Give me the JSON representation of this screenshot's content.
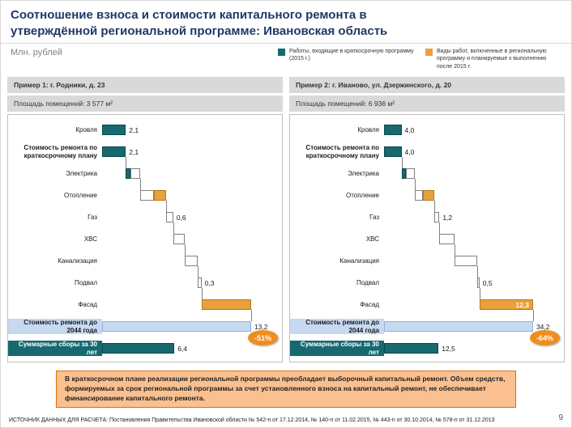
{
  "slide": {
    "title": "Соотношение взноса и стоимости капитального ремонта в утверждённой региональной программе: Ивановская область",
    "units_label": "Млн. рублей",
    "callout": "В краткосрочном плане реализации региональной программы преобладает выборочный капитальный ремонт. Объем средств, формируемых за срок региональной программы за счет установленного взноса на капитальный ремонт, не обеспечивает финансирование капитального ремонта.",
    "footer": "ИСТОЧНИК ДАННЫХ ДЛЯ РАСЧЕТА: Постановления Правительства Ивановской области № 542-п от 17.12.2014, № 140-п от 11.02.2015, № 443-п от 30.10.2014, № 578-п от 31.12.2013",
    "page_number": "9"
  },
  "legend": {
    "items": [
      {
        "label": "Работы, входящие в краткосрочную программу (2015 г.)",
        "color": "#176970"
      },
      {
        "label": "Виды работ, включенные в региональную программу и планируемые к выполнению после 2015 г.",
        "color": "#E8A13C"
      }
    ]
  },
  "colors": {
    "navy": "#203864",
    "teal": "#176970",
    "teal_dark": "#0E474C",
    "orange": "#E8A13C",
    "orange_dark": "#B97718",
    "light_blue": "#C6D9F1",
    "light_blue_border": "#8EB4E3",
    "badge_orange": "#EF8D1E",
    "callout_bg": "#FAC090",
    "callout_border": "#E36C0A",
    "header_gray": "#D9D9D9"
  },
  "chart_data": [
    {
      "type": "bar",
      "variant": "waterfall",
      "orientation": "horizontal",
      "title": "Пример 1: г. Родники, д. 23",
      "subtitle": "Площадь помещений: 3 577 м²",
      "unit": "Млн. рублей",
      "xmax": 13.2,
      "badge": "-51%",
      "rows": [
        {
          "label": "Кровля",
          "segments": [
            {
              "start": 0,
              "value": 2.1,
              "color": "teal"
            }
          ],
          "value_label": "2,1"
        },
        {
          "label": "Стоимость ремонта по краткосрочному плану",
          "bold": true,
          "segments": [
            {
              "start": 0,
              "value": 2.1,
              "color": "teal"
            }
          ],
          "value_label": "2,1"
        },
        {
          "label": "Электрика",
          "segments": [
            {
              "start": 2.1,
              "value": 0.4,
              "color": "teal"
            },
            {
              "start": 2.5,
              "value": 0.9,
              "color": "white"
            }
          ],
          "connector": 2.1
        },
        {
          "label": "Отопление",
          "segments": [
            {
              "start": 3.4,
              "value": 1.2,
              "color": "white"
            },
            {
              "start": 4.6,
              "value": 1.1,
              "color": "orange"
            }
          ],
          "connector": 3.4
        },
        {
          "label": "Газ",
          "segments": [
            {
              "start": 5.7,
              "value": 0.6,
              "color": "white"
            }
          ],
          "value_label": "0,6",
          "connector": 5.7
        },
        {
          "label": "ХВС",
          "segments": [
            {
              "start": 6.3,
              "value": 1.0,
              "color": "white"
            }
          ],
          "connector": 6.3
        },
        {
          "label": "Канализация",
          "segments": [
            {
              "start": 7.3,
              "value": 1.2,
              "color": "white"
            }
          ],
          "connector": 7.3
        },
        {
          "label": "Подвал",
          "segments": [
            {
              "start": 8.5,
              "value": 0.3,
              "color": "white"
            }
          ],
          "value_label": "0,3",
          "connector": 8.5
        },
        {
          "label": "Фасад",
          "segments": [
            {
              "start": 8.8,
              "value": 4.4,
              "color": "orange"
            }
          ],
          "connector": 8.8
        },
        {
          "label": "Стоимость ремонта до 2044 года",
          "bold": true,
          "label_style": "blue",
          "segments": [
            {
              "start": 0,
              "value": 13.2,
              "color": "lightblue"
            }
          ],
          "value_label": "13,2",
          "connector": 13.2
        },
        {
          "label": "Суммарные сборы за 30 лет",
          "bold": true,
          "label_style": "teal",
          "segments": [
            {
              "start": 0,
              "value": 6.4,
              "color": "teal"
            }
          ],
          "value_label": "6,4"
        }
      ]
    },
    {
      "type": "bar",
      "variant": "waterfall",
      "orientation": "horizontal",
      "title": "Пример 2: г. Иваново, ул. Дзержинского, д. 20",
      "subtitle": "Площадь помещений: 6 936 м²",
      "unit": "Млн. рублей",
      "xmax": 34.2,
      "badge": "-64%",
      "rows": [
        {
          "label": "Кровля",
          "segments": [
            {
              "start": 0,
              "value": 4.0,
              "color": "teal"
            }
          ],
          "value_label": "4,0"
        },
        {
          "label": "Стоимость ремонта по краткосрочному плану",
          "bold": true,
          "segments": [
            {
              "start": 0,
              "value": 4.0,
              "color": "teal"
            }
          ],
          "value_label": "4,0"
        },
        {
          "label": "Электрика",
          "segments": [
            {
              "start": 4.0,
              "value": 1.0,
              "color": "teal"
            },
            {
              "start": 5.0,
              "value": 2.0,
              "color": "white"
            }
          ],
          "connector": 4.0
        },
        {
          "label": "Отопление",
          "segments": [
            {
              "start": 7.0,
              "value": 2.0,
              "color": "white"
            },
            {
              "start": 9.0,
              "value": 2.5,
              "color": "orange"
            }
          ],
          "connector": 7.0
        },
        {
          "label": "Газ",
          "segments": [
            {
              "start": 11.5,
              "value": 1.2,
              "color": "white"
            }
          ],
          "value_label": "1,2",
          "connector": 11.5
        },
        {
          "label": "ХВС",
          "segments": [
            {
              "start": 12.7,
              "value": 3.5,
              "color": "white"
            }
          ],
          "connector": 12.7
        },
        {
          "label": "Канализация",
          "segments": [
            {
              "start": 16.2,
              "value": 5.2,
              "color": "white"
            }
          ],
          "connector": 16.2
        },
        {
          "label": "Подвал",
          "segments": [
            {
              "start": 21.4,
              "value": 0.5,
              "color": "white"
            }
          ],
          "value_label": "0,5",
          "connector": 21.4
        },
        {
          "label": "Фасад",
          "segments": [
            {
              "start": 21.9,
              "value": 12.3,
              "color": "orange"
            }
          ],
          "value_label": "12,3",
          "value_placement": "inside",
          "connector": 21.9
        },
        {
          "label": "Стоимость ремонта до 2044 года",
          "bold": true,
          "label_style": "blue",
          "segments": [
            {
              "start": 0,
              "value": 34.2,
              "color": "lightblue"
            }
          ],
          "value_label": "34,2",
          "connector": 34.2
        },
        {
          "label": "Суммарные сборы за 30 лет",
          "bold": true,
          "label_style": "teal",
          "segments": [
            {
              "start": 0,
              "value": 12.5,
              "color": "teal"
            }
          ],
          "value_label": "12,5"
        }
      ]
    }
  ]
}
